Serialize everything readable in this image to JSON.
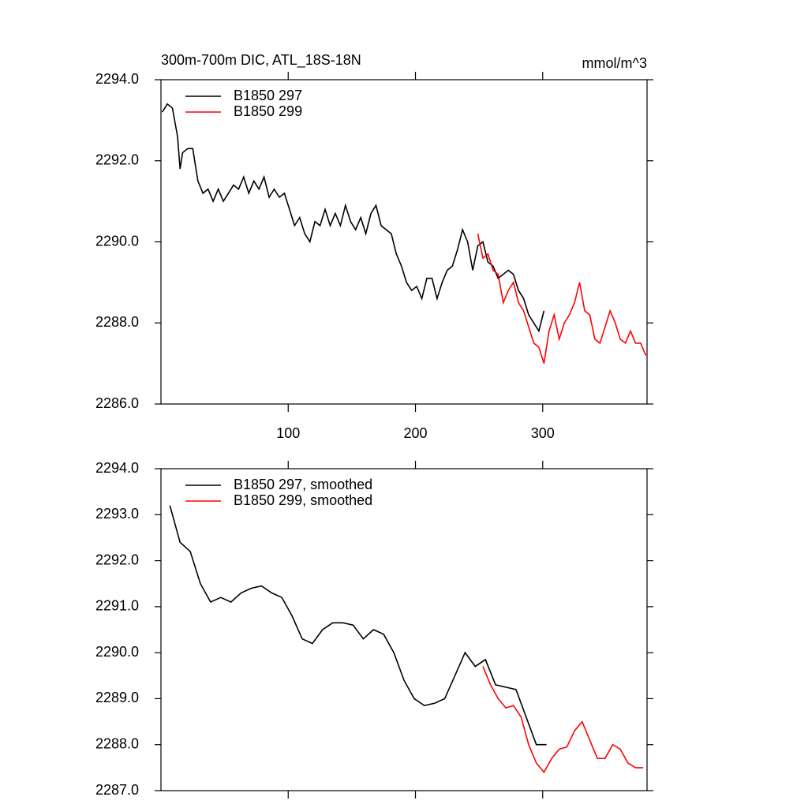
{
  "chart_data": [
    {
      "type": "line",
      "title": "300m-700m DIC, ATL_18S-18N",
      "units": "mmol/m^3",
      "xlim": [
        0,
        382
      ],
      "xticks": [
        100,
        200,
        300
      ],
      "xtick_labels": true,
      "ylim": [
        2286,
        2294
      ],
      "yticks": [
        {
          "value": 2286,
          "label": "2286.0"
        },
        {
          "value": 2288,
          "label": "2288.0"
        },
        {
          "value": 2290,
          "label": "2290.0"
        },
        {
          "value": 2292,
          "label": "2292.0"
        },
        {
          "value": 2294,
          "label": "2294.0"
        }
      ],
      "legend": "upper left",
      "series": [
        {
          "name": "B1850 297",
          "color": "#000000",
          "x": [
            1,
            5,
            9,
            13,
            15,
            17,
            21,
            25,
            29,
            33,
            37,
            41,
            45,
            49,
            53,
            57,
            61,
            65,
            69,
            73,
            77,
            81,
            85,
            89,
            93,
            97,
            101,
            105,
            109,
            113,
            117,
            121,
            125,
            129,
            133,
            137,
            141,
            145,
            149,
            153,
            157,
            161,
            165,
            169,
            173,
            177,
            181,
            185,
            189,
            193,
            197,
            201,
            205,
            209,
            213,
            217,
            221,
            225,
            229,
            233,
            237,
            241,
            245,
            249,
            253,
            257,
            261,
            265,
            269,
            273,
            277,
            281,
            285,
            289,
            293,
            297,
            301
          ],
          "values": [
            2293.2,
            2293.4,
            2293.3,
            2292.6,
            2291.8,
            2292.2,
            2292.3,
            2292.3,
            2291.5,
            2291.2,
            2291.3,
            2291.0,
            2291.3,
            2291.0,
            2291.2,
            2291.4,
            2291.3,
            2291.6,
            2291.2,
            2291.5,
            2291.3,
            2291.6,
            2291.1,
            2291.3,
            2291.1,
            2291.2,
            2290.8,
            2290.4,
            2290.6,
            2290.2,
            2290.0,
            2290.5,
            2290.4,
            2290.8,
            2290.4,
            2290.7,
            2290.4,
            2290.9,
            2290.5,
            2290.3,
            2290.6,
            2290.2,
            2290.7,
            2290.9,
            2290.4,
            2290.3,
            2290.2,
            2289.7,
            2289.4,
            2289.0,
            2288.8,
            2288.9,
            2288.6,
            2289.1,
            2289.1,
            2288.6,
            2289.0,
            2289.3,
            2289.4,
            2289.8,
            2290.3,
            2290.0,
            2289.3,
            2289.9,
            2290.0,
            2289.5,
            2289.4,
            2289.1,
            2289.2,
            2289.3,
            2289.2,
            2288.8,
            2288.6,
            2288.2,
            2288.0,
            2287.8,
            2288.3
          ]
        },
        {
          "name": "B1850 299",
          "color": "#ff0000",
          "x": [
            249,
            253,
            257,
            261,
            265,
            269,
            273,
            277,
            281,
            285,
            289,
            293,
            297,
            301,
            305,
            309,
            313,
            317,
            321,
            325,
            329,
            333,
            337,
            341,
            345,
            349,
            353,
            357,
            361,
            365,
            369,
            373,
            377,
            381
          ],
          "values": [
            2290.2,
            2289.6,
            2289.7,
            2289.3,
            2289.2,
            2288.5,
            2288.8,
            2289.0,
            2288.5,
            2288.3,
            2287.9,
            2287.5,
            2287.4,
            2287.0,
            2287.8,
            2288.2,
            2287.6,
            2288.0,
            2288.2,
            2288.5,
            2289.0,
            2288.3,
            2288.2,
            2287.6,
            2287.5,
            2287.9,
            2288.3,
            2288.0,
            2287.6,
            2287.5,
            2287.8,
            2287.5,
            2287.5,
            2287.2
          ]
        }
      ]
    },
    {
      "type": "line",
      "xlim": [
        0,
        382
      ],
      "xticks": [
        100,
        200,
        300
      ],
      "xtick_labels": false,
      "ylim": [
        2287,
        2294
      ],
      "yticks": [
        {
          "value": 2287,
          "label": "2287.0"
        },
        {
          "value": 2288,
          "label": "2288.0"
        },
        {
          "value": 2289,
          "label": "2289.0"
        },
        {
          "value": 2290,
          "label": "2290.0"
        },
        {
          "value": 2291,
          "label": "2291.0"
        },
        {
          "value": 2292,
          "label": "2292.0"
        },
        {
          "value": 2293,
          "label": "2293.0"
        },
        {
          "value": 2294,
          "label": "2294.0"
        }
      ],
      "legend": "upper left",
      "series": [
        {
          "name": "B1850 297, smoothed",
          "color": "#000000",
          "x": [
            7,
            15,
            23,
            31,
            39,
            47,
            55,
            63,
            71,
            79,
            87,
            95,
            103,
            111,
            119,
            127,
            135,
            143,
            151,
            159,
            167,
            175,
            183,
            191,
            199,
            207,
            215,
            223,
            231,
            239,
            247,
            255,
            263,
            271,
            279,
            287,
            295,
            303
          ],
          "values": [
            2293.2,
            2292.4,
            2292.2,
            2291.5,
            2291.1,
            2291.2,
            2291.1,
            2291.3,
            2291.4,
            2291.45,
            2291.3,
            2291.2,
            2290.8,
            2290.3,
            2290.2,
            2290.5,
            2290.65,
            2290.65,
            2290.6,
            2290.3,
            2290.5,
            2290.4,
            2290.0,
            2289.4,
            2289.0,
            2288.85,
            2288.9,
            2289.0,
            2289.5,
            2290.0,
            2289.7,
            2289.85,
            2289.3,
            2289.25,
            2289.2,
            2288.6,
            2288.0,
            2288.0
          ]
        },
        {
          "name": "B1850 299, smoothed",
          "color": "#ff0000",
          "x": [
            253,
            259,
            265,
            271,
            277,
            283,
            289,
            295,
            301,
            307,
            313,
            319,
            325,
            331,
            337,
            343,
            349,
            355,
            361,
            367,
            373,
            379
          ],
          "values": [
            2289.7,
            2289.3,
            2289.0,
            2288.8,
            2288.85,
            2288.6,
            2288.0,
            2287.6,
            2287.4,
            2287.7,
            2287.9,
            2287.95,
            2288.3,
            2288.5,
            2288.1,
            2287.7,
            2287.7,
            2288.0,
            2287.9,
            2287.6,
            2287.5,
            2287.5
          ]
        }
      ]
    }
  ]
}
